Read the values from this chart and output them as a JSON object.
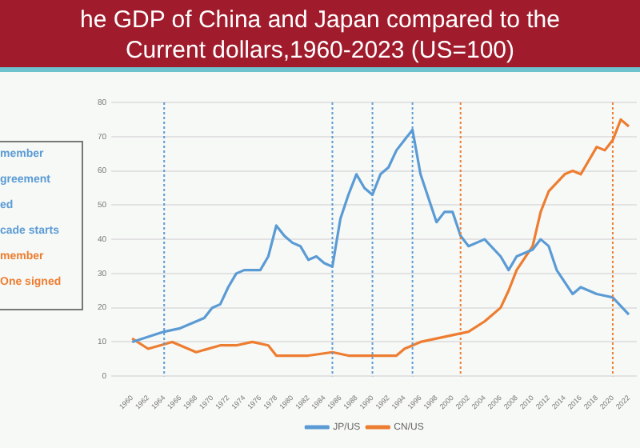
{
  "chart_data": {
    "type": "line",
    "title": "he GDP of China and Japan compared to the",
    "subtitle": "Current dollars,1960-2023 (US=100)",
    "series": [
      {
        "name": "JP/US",
        "color": "#5b9bd5",
        "x": [
          1960,
          1964,
          1966,
          1968,
          1969,
          1970,
          1971,
          1972,
          1973,
          1974,
          1976,
          1977,
          1978,
          1979,
          1980,
          1981,
          1982,
          1983,
          1984,
          1985,
          1986,
          1987,
          1988,
          1989,
          1990,
          1991,
          1992,
          1993,
          1994,
          1995,
          1996,
          1998,
          1999,
          2000,
          2001,
          2002,
          2004,
          2006,
          2007,
          2008,
          2010,
          2011,
          2012,
          2013,
          2015,
          2016,
          2018,
          2020,
          2022
        ],
        "values": [
          10,
          13,
          14,
          16,
          17,
          20,
          21,
          26,
          30,
          31,
          31,
          35,
          44,
          41,
          39,
          38,
          34,
          35,
          33,
          32,
          46,
          53,
          59,
          55,
          53,
          59,
          61,
          66,
          69,
          72,
          59,
          45,
          48,
          48,
          41,
          38,
          40,
          35,
          31,
          35,
          37,
          40,
          38,
          31,
          24,
          26,
          24,
          23,
          18
        ]
      },
      {
        "name": "CN/US",
        "color": "#ed7d31",
        "x": [
          1960,
          1962,
          1965,
          1968,
          1971,
          1973,
          1975,
          1977,
          1978,
          1982,
          1985,
          1987,
          1990,
          1993,
          1994,
          1996,
          1998,
          2000,
          2002,
          2004,
          2005,
          2006,
          2007,
          2008,
          2010,
          2011,
          2012,
          2014,
          2015,
          2016,
          2017,
          2018,
          2019,
          2020,
          2021,
          2022
        ],
        "values": [
          11,
          8,
          10,
          7,
          9,
          9,
          10,
          9,
          6,
          6,
          7,
          6,
          6,
          6,
          8,
          10,
          11,
          12,
          13,
          16,
          18,
          20,
          25,
          31,
          38,
          48,
          54,
          59,
          60,
          59,
          63,
          67,
          66,
          69,
          75,
          73
        ]
      }
    ],
    "xlim": [
      1959,
      2023
    ],
    "xticks": [
      1960,
      1962,
      1964,
      1966,
      1968,
      1970,
      1972,
      1974,
      1976,
      1978,
      1980,
      1982,
      1984,
      1986,
      1988,
      1990,
      1992,
      1994,
      1996,
      1998,
      2000,
      2002,
      2004,
      2006,
      2008,
      2010,
      2012,
      2014,
      2016,
      2018,
      2020,
      2022
    ],
    "ylim": [
      0,
      80
    ],
    "yticks": [
      0,
      10,
      20,
      30,
      40,
      50,
      60,
      70,
      80
    ],
    "grid": "y",
    "legend": "bottom",
    "marker": "none",
    "line_style": "solid",
    "ref_lines": [
      {
        "axis": "x",
        "value": 1964,
        "label": "member",
        "color": "#5b9bd5",
        "line_style": "dotted"
      },
      {
        "axis": "x",
        "value": 1985,
        "label": "greement",
        "color": "#5b9bd5",
        "line_style": "dotted"
      },
      {
        "axis": "x",
        "value": 1990,
        "label": "ed",
        "color": "#5b9bd5",
        "line_style": "dotted"
      },
      {
        "axis": "x",
        "value": 1995,
        "label": "cade starts",
        "color": "#5b9bd5",
        "line_style": "dotted"
      },
      {
        "axis": "x",
        "value": 2001,
        "label": "member",
        "color": "#ed7d31",
        "line_style": "dotted"
      },
      {
        "axis": "x",
        "value": 2020,
        "label": "One signed",
        "color": "#ed7d31",
        "line_style": "dotted"
      }
    ]
  }
}
